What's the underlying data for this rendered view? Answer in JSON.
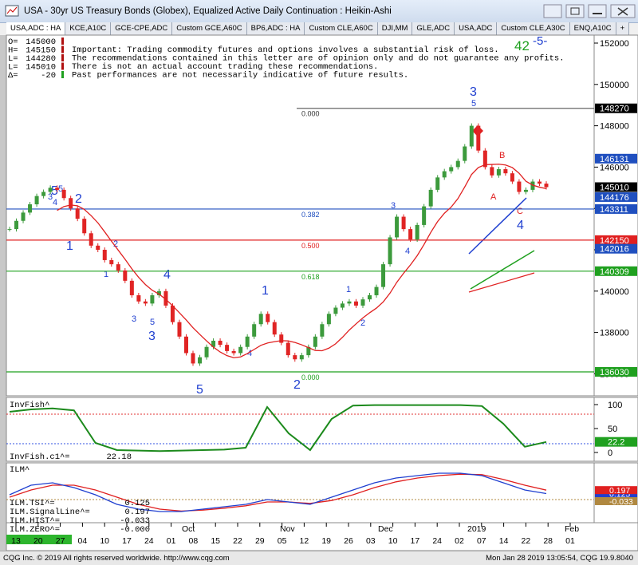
{
  "window_title": "USA - 30yr US Treasury Bonds (Globex), Equalized Active Daily Continuation : Heikin-Ashi",
  "tabs": [
    "USA,ADC : HA",
    "KCE,A10C",
    "GCE-CPE,ADC",
    "Custom GCE,A60C",
    "BP6,ADC : HA",
    "Custom CLE,A60C",
    "DJI,MM",
    "GLE,ADC",
    "USA,ADC",
    "Custom CLE,A30C",
    "ENQ,A10C",
    "+"
  ],
  "quote": [
    {
      "label": "O=",
      "value": 145000
    },
    {
      "label": "H=",
      "value": 145150
    },
    {
      "label": "L=",
      "value": 144280
    },
    {
      "label": "L=",
      "value": 145010
    },
    {
      "label": "Δ=",
      "value": -20
    }
  ],
  "disclaimer": [
    "Important: Trading commodity futures and options involves a substantial risk of loss.",
    "The recommendations contained in this letter are of opinion only and do not guarantee any profits.",
    "There is not an actual account trading these recommendations.",
    "Past performances are not necessarily indicative of future results."
  ],
  "corner_note": [
    "42",
    "-5-"
  ],
  "price_axis": {
    "yticks": [
      152000,
      150000,
      148000,
      146000,
      144000,
      142000,
      140000,
      138000,
      136000
    ],
    "markers": [
      {
        "value": 148270,
        "color": "#000000",
        "fib": "0.000"
      },
      {
        "value": 146131,
        "color": "#1f4fbf"
      },
      {
        "value": 145010,
        "color": "#000000"
      },
      {
        "value": 144176,
        "color": "#1f4fbf"
      },
      {
        "value": 143311,
        "color": "#1f4fbf",
        "fib": "0.382"
      },
      {
        "value": 142150,
        "color": "#e02020",
        "fib": "0.500"
      },
      {
        "value": 142016,
        "color": "#1f4fbf"
      },
      {
        "value": 140309,
        "color": "#1fa01f",
        "fib": "0.618"
      },
      {
        "value": 136030,
        "color": "#1fa01f",
        "fib": "0.000"
      }
    ]
  },
  "closes": [
    143000,
    143128,
    143256,
    144064,
    144192,
    144256,
    145000,
    144288,
    144160,
    144000,
    143160,
    142256,
    142064,
    142000,
    141160,
    141096,
    141000,
    140160,
    139256,
    139160,
    139128,
    139256,
    140000,
    139096,
    138160,
    137256,
    137000,
    136160,
    136256,
    137096,
    137192,
    137128,
    137032,
    137000,
    137096,
    137256,
    138128,
    138288,
    138160,
    137288,
    137160,
    136288,
    136224,
    136288,
    137096,
    137256,
    138128,
    138288,
    139064,
    139128,
    139160,
    139096,
    139192,
    139256,
    140064,
    141096,
    142192,
    143192,
    143000,
    142160,
    143064,
    144032,
    144288,
    145160,
    145256,
    146000,
    146096,
    147000,
    148000,
    146256,
    146000,
    145192,
    145288,
    145224,
    145096,
    144256,
    144288,
    145096,
    145064,
    145010
  ],
  "up_color": "#3c9a3c",
  "down_color": "#e02424",
  "waves": [
    "5",
    "2",
    "1",
    "4",
    "3",
    "5",
    "1",
    "2",
    "3",
    "4",
    "3",
    "5",
    "4",
    "2",
    "1",
    "3",
    "5",
    "4",
    "1",
    "2",
    "3",
    "5",
    "A",
    "B",
    "C",
    "4"
  ],
  "invfish": {
    "title": "InvFish^",
    "values": [
      85,
      90,
      92,
      88,
      20,
      5,
      4,
      3,
      4,
      5,
      6,
      10,
      95,
      40,
      5,
      70,
      98,
      99,
      99,
      99,
      99,
      99,
      97,
      60,
      12,
      22
    ],
    "yticks": [
      100,
      50,
      0
    ],
    "last": 22.2,
    "readout": {
      "label": "InvFish.c1^=",
      "value": 22.18
    }
  },
  "ilm": {
    "title": "ILM^",
    "tsi": [
      0.1,
      0.3,
      0.35,
      0.25,
      0.1,
      -0.1,
      -0.2,
      -0.25,
      -0.25,
      -0.2,
      -0.15,
      -0.1,
      0,
      -0.05,
      -0.1,
      0.05,
      0.2,
      0.35,
      0.45,
      0.5,
      0.55,
      0.55,
      0.5,
      0.35,
      0.2,
      0.125
    ],
    "signal": [
      0.05,
      0.2,
      0.3,
      0.3,
      0.2,
      0.05,
      -0.1,
      -0.2,
      -0.24,
      -0.22,
      -0.18,
      -0.13,
      -0.05,
      -0.05,
      -0.08,
      -0.02,
      0.1,
      0.25,
      0.37,
      0.45,
      0.5,
      0.53,
      0.52,
      0.42,
      0.3,
      0.197
    ],
    "readouts": [
      {
        "label": "ILM.TSI^=",
        "value": 0.125,
        "color": "#1f3fd0"
      },
      {
        "label": "ILM.SignalLine^=",
        "value": 0.197,
        "color": "#e02020"
      },
      {
        "label": "ILM.HIST^=",
        "value": -0.033,
        "color": "#b08840"
      },
      {
        "label": "ILM.ZERO^=",
        "value": {
          "value": 0,
          "label": "-0.000"
        },
        "color": "#808080"
      }
    ]
  },
  "months": [
    "Oct",
    "Nov",
    "Dec",
    "2019",
    "Feb"
  ],
  "days": [
    "13",
    "20",
    "27",
    "04",
    "10",
    "17",
    "24",
    "01",
    "08",
    "15",
    "22",
    "29",
    "05",
    "12",
    "19",
    "26",
    "03",
    "10",
    "17",
    "24",
    "02",
    "07",
    "14",
    "22",
    "28",
    "01"
  ],
  "status_left": "CQG Inc. © 2019 All rights reserved worldwide. http://www.cqg.com",
  "status_right": "Mon Jan 28 2019 13:05:54, CQG 19.9.8040"
}
